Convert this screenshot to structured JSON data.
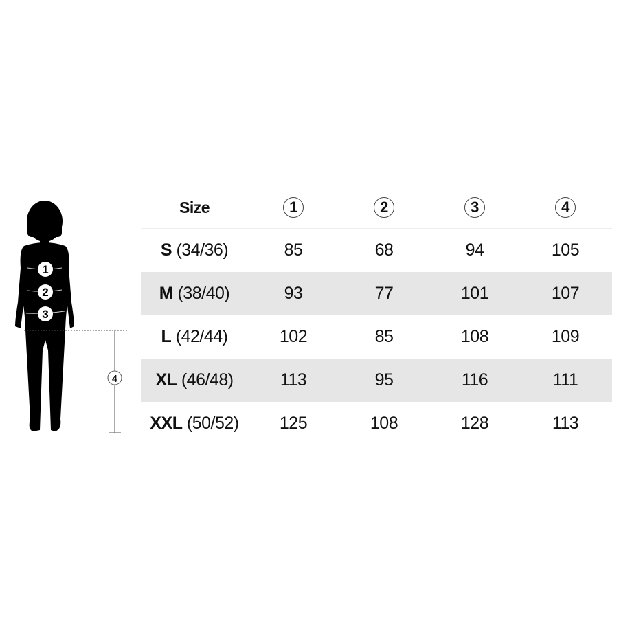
{
  "header": {
    "size_label": "Size",
    "columns": [
      "1",
      "2",
      "3",
      "4"
    ]
  },
  "figure": {
    "markers": [
      "1",
      "2",
      "3"
    ],
    "length_marker": "4"
  },
  "rows": [
    {
      "size": "S",
      "eu": "(34/36)",
      "values": [
        "85",
        "68",
        "94",
        "105"
      ]
    },
    {
      "size": "M",
      "eu": "(38/40)",
      "values": [
        "93",
        "77",
        "101",
        "107"
      ]
    },
    {
      "size": "L",
      "eu": "(42/44)",
      "values": [
        "102",
        "85",
        "108",
        "109"
      ]
    },
    {
      "size": "XL",
      "eu": "(46/48)",
      "values": [
        "113",
        "95",
        "116",
        "111"
      ]
    },
    {
      "size": "XXL",
      "eu": "(50/52)",
      "values": [
        "125",
        "108",
        "128",
        "113"
      ]
    }
  ],
  "colors": {
    "stripe": "#e6e6e6",
    "silhouette": "#000000"
  }
}
